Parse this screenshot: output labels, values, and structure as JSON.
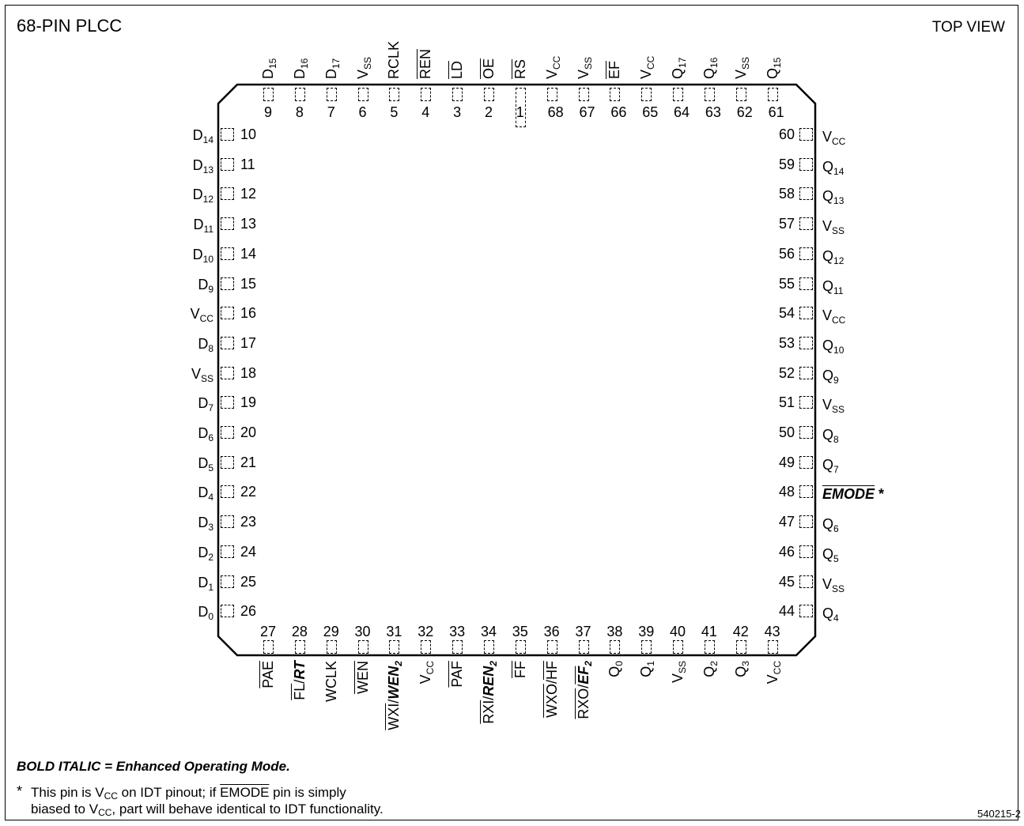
{
  "header": {
    "title": "68-PIN PLCC",
    "view": "TOP VIEW"
  },
  "footer": {
    "legend": "BOLD ITALIC = Enhanced Operating Mode.",
    "note_star": "*",
    "note_line1_a": "This pin is V",
    "note_line1_sub": "CC",
    "note_line1_b": " on IDT pinout;  if ",
    "note_line1_ov": "EMODE",
    "note_line1_c": " pin is simply",
    "note_line2_a": "biased to V",
    "note_line2_sub": "CC",
    "note_line2_b": ", part will behave identical to IDT functionality.",
    "doc_id": "540215-2"
  },
  "pins": {
    "top": [
      {
        "n": "9",
        "label": "D",
        "sub": "15"
      },
      {
        "n": "8",
        "label": "D",
        "sub": "16"
      },
      {
        "n": "7",
        "label": "D",
        "sub": "17"
      },
      {
        "n": "6",
        "label": "V",
        "sub": "SS"
      },
      {
        "n": "5",
        "label": "RCLK",
        "sub": ""
      },
      {
        "n": "4",
        "label": "REN",
        "sub": "",
        "ov": true
      },
      {
        "n": "3",
        "label": "LD",
        "sub": "",
        "ov": true
      },
      {
        "n": "2",
        "label": "OE",
        "sub": "",
        "ov": true
      },
      {
        "n": "1",
        "label": "RS",
        "sub": "",
        "ov": true
      },
      {
        "n": "68",
        "label": "V",
        "sub": "CC"
      },
      {
        "n": "67",
        "label": "V",
        "sub": "SS"
      },
      {
        "n": "66",
        "label": "EF",
        "sub": "",
        "ov": true
      },
      {
        "n": "65",
        "label": "V",
        "sub": "CC"
      },
      {
        "n": "64",
        "label": "Q",
        "sub": "17"
      },
      {
        "n": "63",
        "label": "Q",
        "sub": "16"
      },
      {
        "n": "62",
        "label": "V",
        "sub": "SS"
      },
      {
        "n": "61",
        "label": "Q",
        "sub": "15"
      }
    ],
    "left": [
      {
        "n": "10",
        "label": "D",
        "sub": "14"
      },
      {
        "n": "11",
        "label": "D",
        "sub": "13"
      },
      {
        "n": "12",
        "label": "D",
        "sub": "12"
      },
      {
        "n": "13",
        "label": "D",
        "sub": "11"
      },
      {
        "n": "14",
        "label": "D",
        "sub": "10"
      },
      {
        "n": "15",
        "label": "D",
        "sub": "9"
      },
      {
        "n": "16",
        "label": "V",
        "sub": "CC"
      },
      {
        "n": "17",
        "label": "D",
        "sub": "8"
      },
      {
        "n": "18",
        "label": "V",
        "sub": "SS"
      },
      {
        "n": "19",
        "label": "D",
        "sub": "7"
      },
      {
        "n": "20",
        "label": "D",
        "sub": "6"
      },
      {
        "n": "21",
        "label": "D",
        "sub": "5"
      },
      {
        "n": "22",
        "label": "D",
        "sub": "4"
      },
      {
        "n": "23",
        "label": "D",
        "sub": "3"
      },
      {
        "n": "24",
        "label": "D",
        "sub": "2"
      },
      {
        "n": "25",
        "label": "D",
        "sub": "1"
      },
      {
        "n": "26",
        "label": "D",
        "sub": "0"
      }
    ],
    "right": [
      {
        "n": "60",
        "label": "V",
        "sub": "CC"
      },
      {
        "n": "59",
        "label": "Q",
        "sub": "14"
      },
      {
        "n": "58",
        "label": "Q",
        "sub": "13"
      },
      {
        "n": "57",
        "label": "V",
        "sub": "SS"
      },
      {
        "n": "56",
        "label": "Q",
        "sub": "12"
      },
      {
        "n": "55",
        "label": "Q",
        "sub": "11"
      },
      {
        "n": "54",
        "label": "V",
        "sub": "CC"
      },
      {
        "n": "53",
        "label": "Q",
        "sub": "10"
      },
      {
        "n": "52",
        "label": "Q",
        "sub": "9"
      },
      {
        "n": "51",
        "label": "V",
        "sub": "SS"
      },
      {
        "n": "50",
        "label": "Q",
        "sub": "8"
      },
      {
        "n": "49",
        "label": "Q",
        "sub": "7"
      },
      {
        "n": "48",
        "label": "EMODE",
        "sub": "",
        "ov": true,
        "enh": true,
        "star": "*"
      },
      {
        "n": "47",
        "label": "Q",
        "sub": "6"
      },
      {
        "n": "46",
        "label": "Q",
        "sub": "5"
      },
      {
        "n": "45",
        "label": "V",
        "sub": "SS"
      },
      {
        "n": "44",
        "label": "Q",
        "sub": "4"
      }
    ],
    "bottom": [
      {
        "n": "27",
        "parts": [
          {
            "t": "PAE",
            "ov": true
          }
        ]
      },
      {
        "n": "28",
        "parts": [
          {
            "t": "FL",
            "ov": true
          },
          {
            "t": "/"
          },
          {
            "t": "RT",
            "enh": true
          }
        ]
      },
      {
        "n": "29",
        "parts": [
          {
            "t": "WCLK"
          }
        ]
      },
      {
        "n": "30",
        "parts": [
          {
            "t": "WEN",
            "ov": true
          }
        ]
      },
      {
        "n": "31",
        "parts": [
          {
            "t": "WXI",
            "ov": true
          },
          {
            "t": "/"
          },
          {
            "t": "WEN",
            "enh": true,
            "sub": "2"
          }
        ]
      },
      {
        "n": "32",
        "parts": [
          {
            "t": "V"
          },
          {
            "t": "CC",
            "subonly": true
          }
        ]
      },
      {
        "n": "33",
        "parts": [
          {
            "t": "PAF",
            "ov": true
          }
        ]
      },
      {
        "n": "34",
        "parts": [
          {
            "t": "RXI",
            "ov": true
          },
          {
            "t": "/"
          },
          {
            "t": "REN",
            "enh": true,
            "sub": "2"
          }
        ]
      },
      {
        "n": "35",
        "parts": [
          {
            "t": "FF",
            "ov": true
          }
        ]
      },
      {
        "n": "36",
        "parts": [
          {
            "t": "WXO",
            "ov": true
          },
          {
            "t": "/"
          },
          {
            "t": "HF",
            "ov": true
          }
        ]
      },
      {
        "n": "37",
        "parts": [
          {
            "t": "RXO",
            "ov": true
          },
          {
            "t": "/"
          },
          {
            "t": "EF",
            "enh": true,
            "ov": true,
            "sub": "2"
          }
        ]
      },
      {
        "n": "38",
        "parts": [
          {
            "t": "Q"
          },
          {
            "t": "0",
            "subonly": true
          }
        ]
      },
      {
        "n": "39",
        "parts": [
          {
            "t": "Q"
          },
          {
            "t": "1",
            "subonly": true
          }
        ]
      },
      {
        "n": "40",
        "parts": [
          {
            "t": "V"
          },
          {
            "t": "SS",
            "subonly": true
          }
        ]
      },
      {
        "n": "41",
        "parts": [
          {
            "t": "Q"
          },
          {
            "t": "2",
            "subonly": true
          }
        ]
      },
      {
        "n": "42",
        "parts": [
          {
            "t": "Q"
          },
          {
            "t": "3",
            "subonly": true
          }
        ]
      },
      {
        "n": "43",
        "parts": [
          {
            "t": "V"
          },
          {
            "t": "CC",
            "subonly": true
          }
        ]
      }
    ]
  }
}
